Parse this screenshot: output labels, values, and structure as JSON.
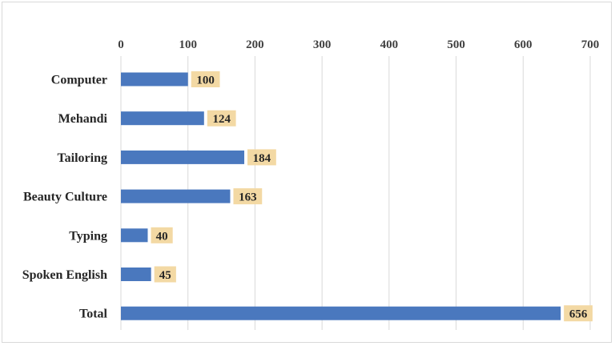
{
  "chart_data": {
    "type": "bar",
    "orientation": "horizontal",
    "categories": [
      "Computer",
      "Mehandi",
      "Tailoring",
      "Beauty Culture",
      "Typing",
      "Spoken English",
      "Total"
    ],
    "values": [
      100,
      124,
      184,
      163,
      40,
      45,
      656
    ],
    "xlim": [
      0,
      700
    ],
    "xticks": [
      0,
      100,
      200,
      300,
      400,
      500,
      600,
      700
    ],
    "x_axis_position": "top",
    "grid": true,
    "data_labels": true,
    "colors": {
      "bar": "#4a78be",
      "label_background": "#f3d9a4",
      "grid": "#d9d9d9"
    }
  }
}
